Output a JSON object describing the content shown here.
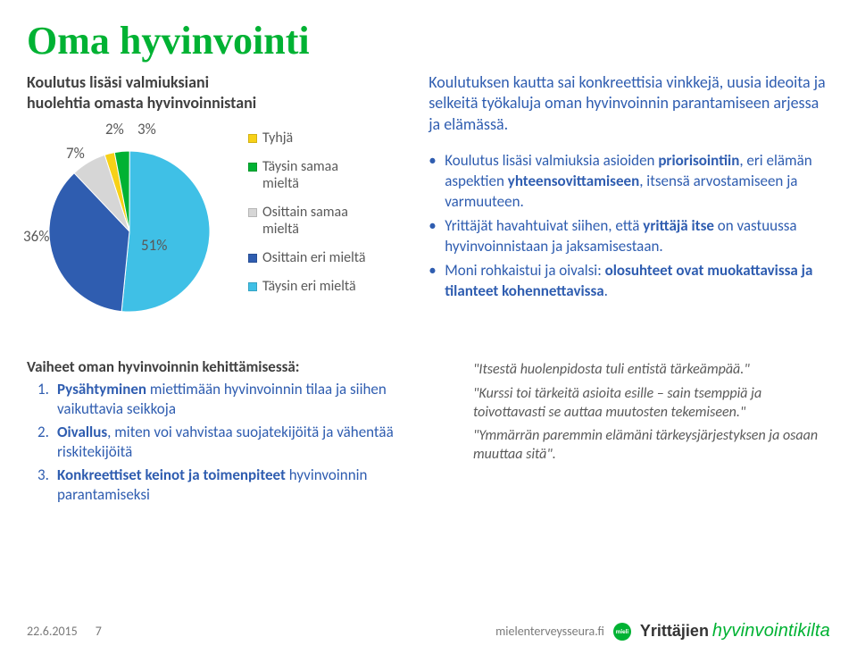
{
  "title": "Oma hyvinvointi",
  "subtitle": "Koulutus lisäsi valmiuksiani\nhuolehtia omasta hyvinvoinnistani",
  "chart": {
    "type": "pie",
    "slices": [
      {
        "label": "2%",
        "value": 2,
        "color": "#f7d117",
        "legend": "Tyhjä",
        "labelX": 88,
        "labelY": -2
      },
      {
        "label": "3%",
        "value": 3,
        "color": "#00b233",
        "legend": "Täysin samaa mieltä",
        "labelX": 124,
        "labelY": -2
      },
      {
        "label": "7%",
        "value": 7,
        "color": "#d6d6d6",
        "legend": "Osittain samaa mieltä",
        "labelX": 44,
        "labelY": 25
      },
      {
        "label": "36%",
        "value": 36,
        "color": "#2f5db0",
        "legend": "Osittain eri mieltä",
        "labelX": -4,
        "labelY": 118
      },
      {
        "label": "51%",
        "value": 51,
        "color": "#3fc0e6",
        "legend": "Täysin eri mieltä",
        "labelX": 128,
        "labelY": 128
      }
    ],
    "startAngleDeg": -108
  },
  "leadParagraph": "Koulutuksen kautta sai konkreettisia vinkkejä, uusia ideoita ja selkeitä työkaluja oman hyvinvoinnin parantamiseen arjessa ja elämässä.",
  "bullets": [
    "Koulutus lisäsi valmiuksia asioiden <b>priorisointiin</b>, eri elämän aspektien <b>yhteensovittamiseen</b>, itsensä arvostamiseen ja varmuuteen.",
    "Yrittäjät havahtuivat siihen, että <b>yrittäjä itse</b> on vastuussa hyvinvoinnistaan ja jaksamisestaan.",
    "Moni rohkaistui ja oivalsi: <b>olosuhteet ovat muokattavissa ja tilanteet kohennettavissa</b>."
  ],
  "stepsHeading": "Vaiheet oman hyvinvoinnin kehittämisessä:",
  "steps": [
    "<b>Pysähtyminen</b> miettimään hyvinvoinnin tilaa ja siihen vaikuttavia seikkoja",
    "<b>Oivallus</b>, miten voi vahvistaa suojatekijöitä ja vähentää riskitekijöitä",
    "<b>Konkreettiset keinot ja toimenpiteet</b> hyvinvoinnin parantamiseksi"
  ],
  "quotes": [
    "\"Itsestä huolenpidosta tuli entistä tärkeämpää.\"",
    "\"Kurssi toi tärkeitä asioita esille – sain tsemppiä ja toivottavasti se auttaa muutosten tekemiseen.\"",
    "\"Ymmärrän paremmin elämäni tärkeysjärjestyksen ja osaan muuttaa sitä\"."
  ],
  "footer": {
    "date": "22.6.2015",
    "pageNumber": "7",
    "site": "mielenterveysseura.fi",
    "badge": "mieli",
    "brandWord1": "Yrittäjien",
    "brandWord2": "hyvinvointikilta"
  }
}
